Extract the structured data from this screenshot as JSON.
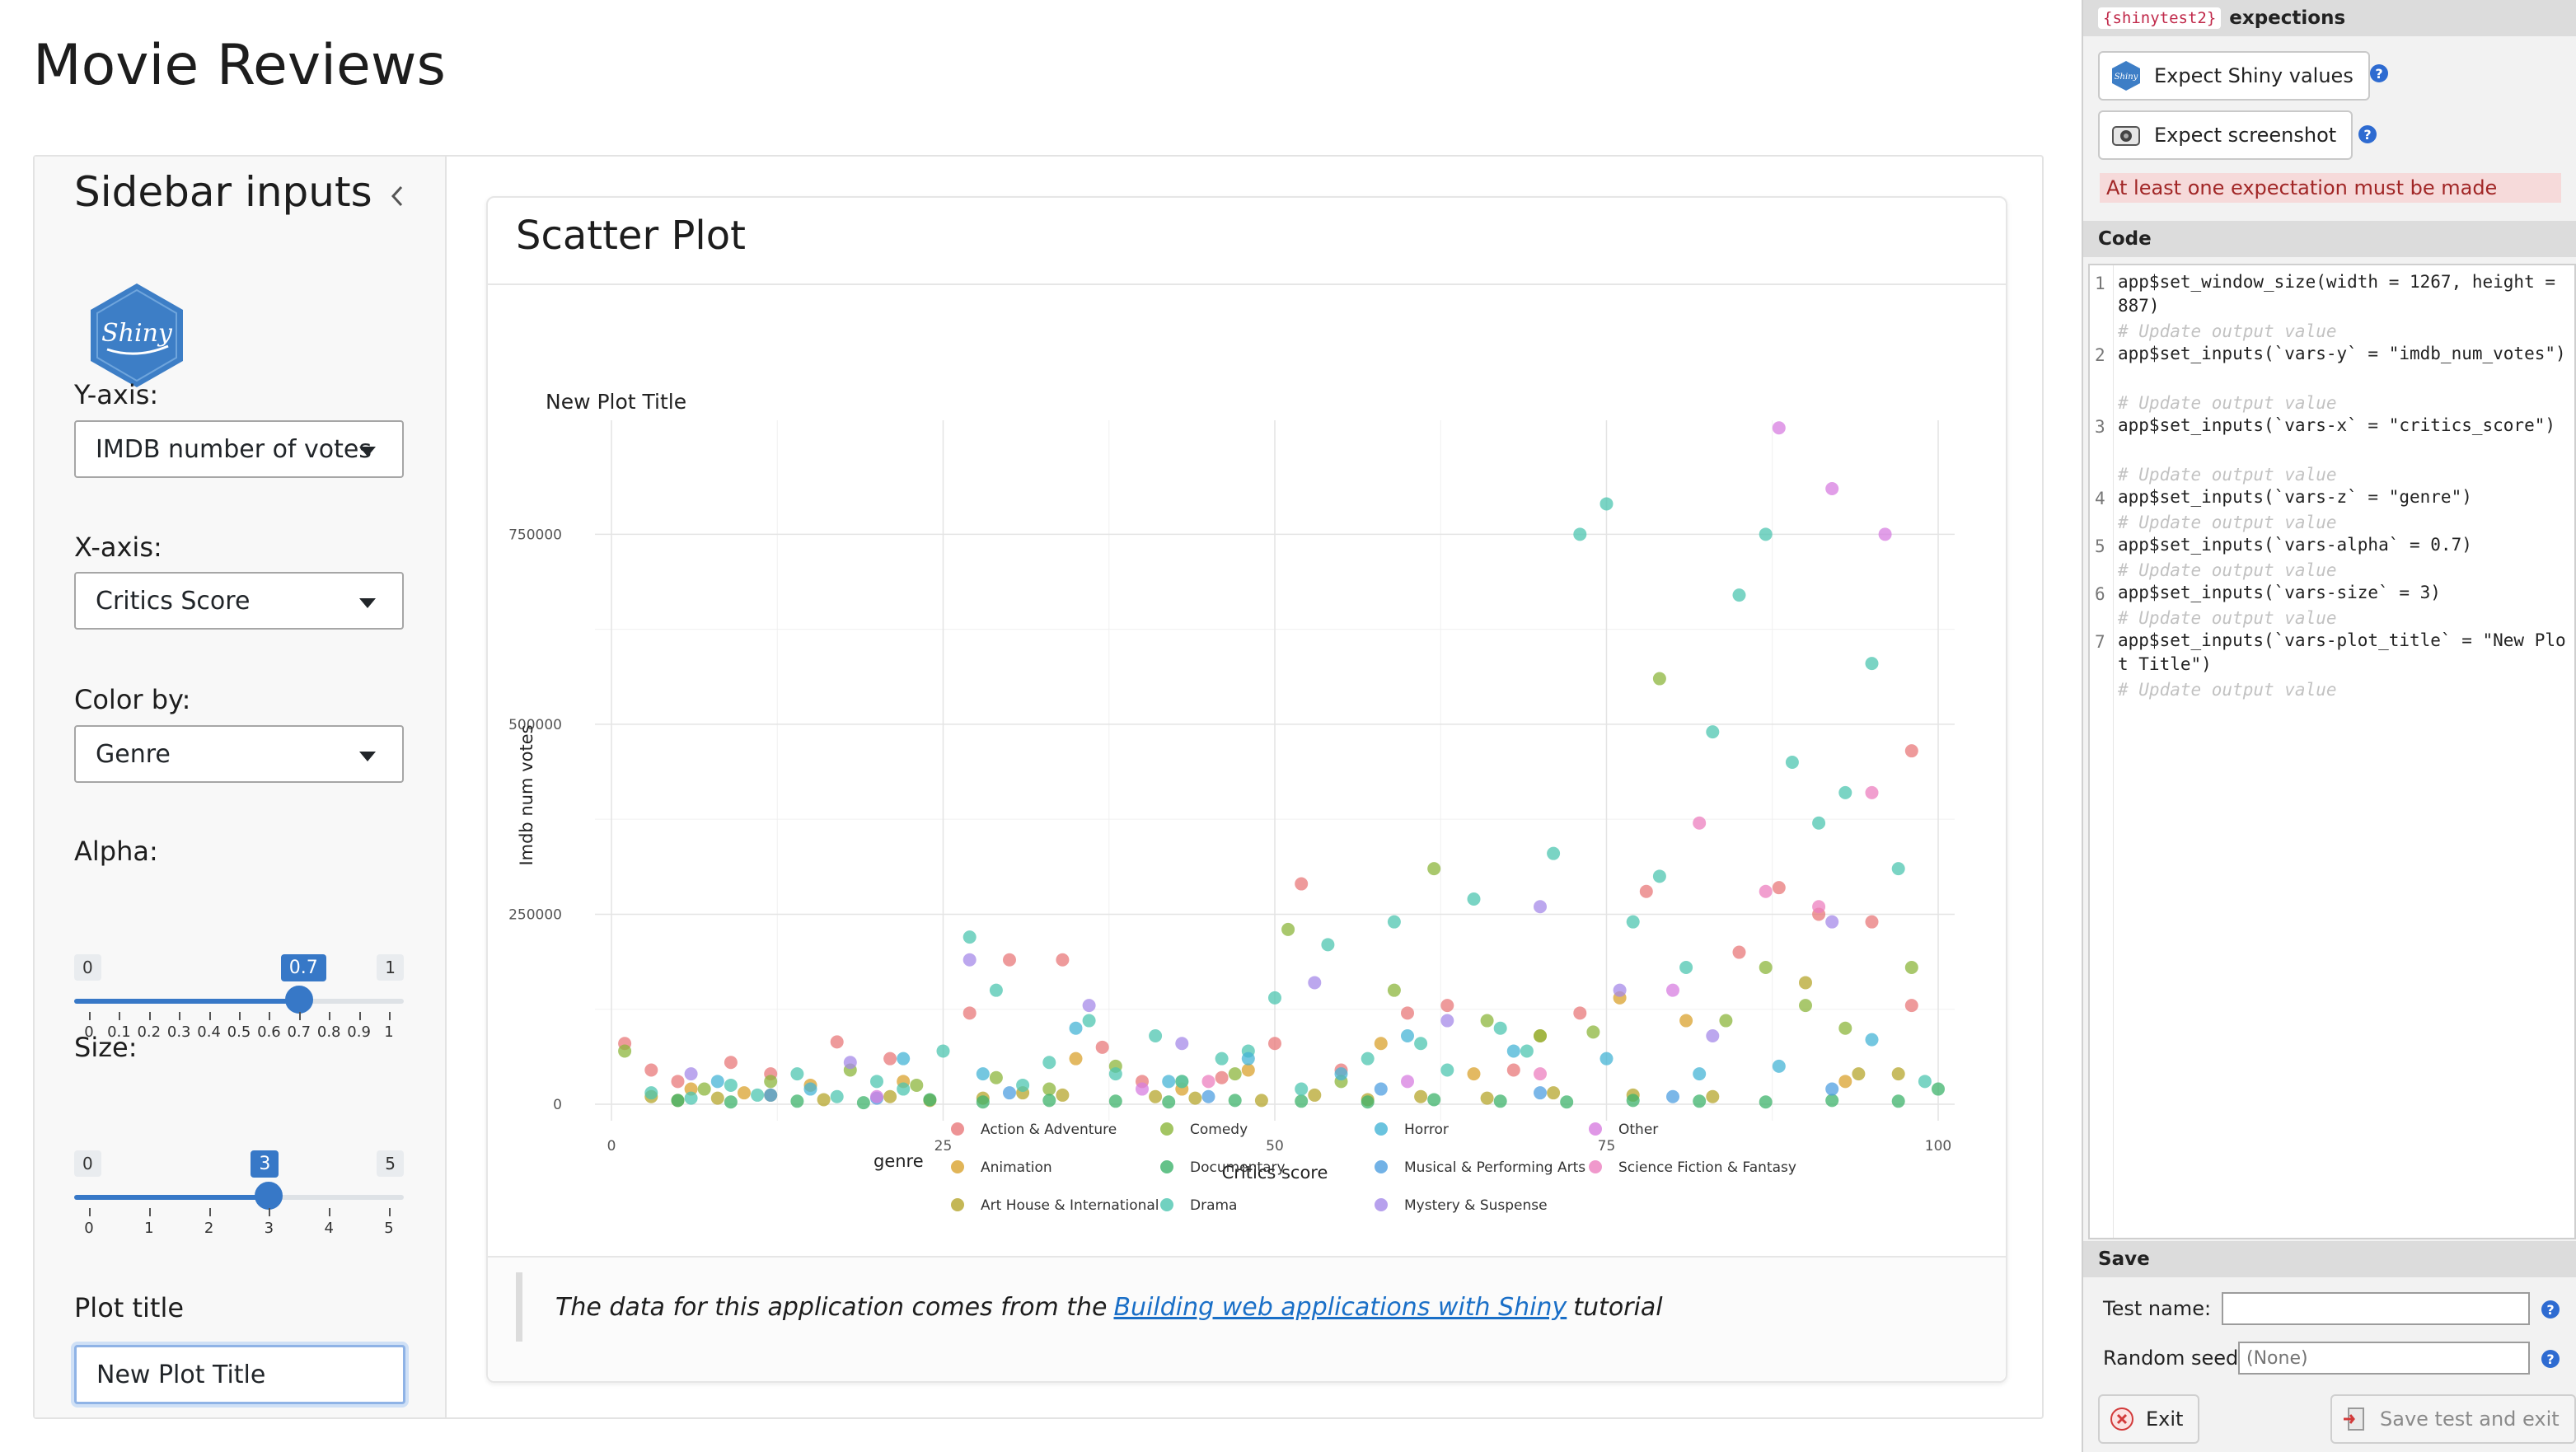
{
  "app": {
    "title": "Movie Reviews"
  },
  "sidebar": {
    "title": "Sidebar inputs",
    "y_axis": {
      "label": "Y-axis:",
      "value": "IMDB number of votes"
    },
    "x_axis": {
      "label": "X-axis:",
      "value": "Critics Score"
    },
    "color_by": {
      "label": "Color by:",
      "value": "Genre"
    },
    "alpha": {
      "label": "Alpha:",
      "min": "0",
      "max": "1",
      "value": 0.7,
      "value_label": "0.7",
      "ticks": [
        "0",
        "0.1",
        "0.2",
        "0.3",
        "0.4",
        "0.5",
        "0.6",
        "0.7",
        "0.8",
        "0.9",
        "1"
      ]
    },
    "size": {
      "label": "Size:",
      "min": "0",
      "max": "5",
      "value": 3,
      "value_label": "3",
      "ticks": [
        "0",
        "1",
        "2",
        "3",
        "4",
        "5"
      ]
    },
    "plot_title": {
      "label": "Plot title",
      "value": "New Plot Title"
    }
  },
  "main": {
    "card_title": "Scatter Plot",
    "footer": {
      "prefix": "The data for this application comes from the",
      "link": "Building web applications with Shiny",
      "suffix": "tutorial"
    }
  },
  "chart_data": {
    "type": "scatter",
    "title": "New Plot Title",
    "xlabel": "Critics score",
    "ylabel": "Imdb num votes",
    "xlim": [
      0,
      100
    ],
    "ylim": [
      0,
      900000
    ],
    "x_ticks": [
      0,
      25,
      50,
      75,
      100
    ],
    "y_ticks": [
      0,
      250000,
      500000,
      750000
    ],
    "y_tick_labels": [
      "0",
      "250000",
      "500000",
      "750000"
    ],
    "grid": true,
    "legend": {
      "title": "genre",
      "position": "bottom"
    },
    "series": [
      {
        "name": "Action & Adventure",
        "color": "#e8787a",
        "x": [
          1,
          3,
          5,
          9,
          12,
          17,
          21,
          27,
          30,
          34,
          37,
          40,
          46,
          50,
          52,
          55,
          60,
          63,
          68,
          73,
          78,
          85,
          88,
          91,
          95,
          98,
          98
        ],
        "y": [
          80000,
          45000,
          30000,
          55000,
          40000,
          82000,
          60000,
          120000,
          190000,
          190000,
          75000,
          30000,
          35000,
          80000,
          290000,
          45000,
          120000,
          130000,
          45000,
          120000,
          280000,
          200000,
          285000,
          250000,
          240000,
          130000,
          465000
        ]
      },
      {
        "name": "Animation",
        "color": "#d9a22e",
        "x": [
          6,
          10,
          15,
          22,
          35,
          43,
          48,
          58,
          65,
          70,
          76,
          81,
          93
        ],
        "y": [
          20000,
          15000,
          25000,
          30000,
          60000,
          20000,
          45000,
          80000,
          40000,
          90000,
          140000,
          110000,
          30000
        ]
      },
      {
        "name": "Art House & International",
        "color": "#b5a52c",
        "x": [
          3,
          5,
          8,
          12,
          16,
          21,
          24,
          28,
          31,
          34,
          41,
          44,
          49,
          53,
          57,
          61,
          66,
          71,
          77,
          83,
          90,
          94,
          97
        ],
        "y": [
          10000,
          5000,
          8000,
          12000,
          6000,
          10000,
          5000,
          8000,
          15000,
          12000,
          10000,
          8000,
          5000,
          12000,
          6000,
          10000,
          8000,
          15000,
          12000,
          10000,
          160000,
          40000,
          40000
        ]
      },
      {
        "name": "Comedy",
        "color": "#8cb63c",
        "x": [
          1,
          7,
          12,
          18,
          23,
          29,
          33,
          38,
          43,
          47,
          51,
          55,
          59,
          62,
          66,
          70,
          74,
          79,
          84,
          87,
          90,
          93,
          98
        ],
        "y": [
          70000,
          20000,
          30000,
          45000,
          25000,
          35000,
          20000,
          50000,
          30000,
          40000,
          230000,
          30000,
          150000,
          310000,
          110000,
          90000,
          95000,
          560000,
          110000,
          180000,
          130000,
          100000,
          180000
        ]
      },
      {
        "name": "Documentary",
        "color": "#3db36b",
        "x": [
          5,
          9,
          14,
          19,
          24,
          28,
          33,
          38,
          42,
          47,
          52,
          57,
          62,
          67,
          72,
          77,
          82,
          87,
          92,
          97,
          100
        ],
        "y": [
          5000,
          3000,
          4000,
          2000,
          6000,
          3000,
          5000,
          4000,
          3000,
          5000,
          4000,
          3000,
          6000,
          4000,
          3000,
          5000,
          4000,
          3000,
          5000,
          4000,
          20000
        ]
      },
      {
        "name": "Drama",
        "color": "#4ec6b0",
        "x": [
          3,
          6,
          9,
          11,
          14,
          17,
          20,
          22,
          25,
          27,
          29,
          31,
          33,
          36,
          38,
          41,
          43,
          46,
          48,
          50,
          52,
          54,
          57,
          59,
          61,
          63,
          65,
          67,
          69,
          71,
          73,
          75,
          77,
          79,
          81,
          83,
          85,
          87,
          89,
          91,
          93,
          95,
          97,
          99
        ],
        "y": [
          15000,
          8000,
          25000,
          12000,
          40000,
          10000,
          30000,
          20000,
          70000,
          220000,
          150000,
          25000,
          55000,
          110000,
          40000,
          90000,
          30000,
          60000,
          70000,
          140000,
          20000,
          210000,
          60000,
          240000,
          80000,
          45000,
          270000,
          100000,
          70000,
          330000,
          750000,
          790000,
          240000,
          300000,
          180000,
          490000,
          670000,
          750000,
          450000,
          370000,
          410000,
          580000,
          310000,
          30000
        ]
      },
      {
        "name": "Horror",
        "color": "#45b4d6",
        "x": [
          8,
          15,
          22,
          28,
          35,
          42,
          48,
          55,
          60,
          68,
          75,
          82,
          88,
          95
        ],
        "y": [
          30000,
          20000,
          60000,
          40000,
          100000,
          30000,
          60000,
          40000,
          90000,
          70000,
          60000,
          40000,
          50000,
          85000
        ]
      },
      {
        "name": "Musical & Performing Arts",
        "color": "#4f9fe0",
        "x": [
          12,
          20,
          30,
          45,
          58,
          70,
          80,
          92
        ],
        "y": [
          12000,
          8000,
          15000,
          10000,
          20000,
          15000,
          10000,
          20000
        ]
      },
      {
        "name": "Mystery & Suspense",
        "color": "#a58ae8",
        "x": [
          6,
          18,
          27,
          36,
          43,
          53,
          63,
          70,
          76,
          83,
          92
        ],
        "y": [
          40000,
          55000,
          190000,
          130000,
          80000,
          160000,
          110000,
          260000,
          150000,
          90000,
          240000
        ]
      },
      {
        "name": "Other",
        "color": "#d77de0",
        "x": [
          20,
          40,
          60,
          80,
          88,
          92,
          96
        ],
        "y": [
          10000,
          20000,
          30000,
          150000,
          890000,
          810000,
          750000
        ]
      },
      {
        "name": "Science Fiction & Fantasy",
        "color": "#ec7fbf",
        "x": [
          45,
          70,
          82,
          87,
          91,
          95
        ],
        "y": [
          30000,
          40000,
          370000,
          280000,
          260000,
          410000
        ]
      }
    ]
  },
  "panel": {
    "header_pill": "{shinytest2}",
    "header_text": "expections",
    "expect_values": "Expect Shiny values",
    "expect_screenshot": "Expect screenshot",
    "warning": "At least one expectation must be made",
    "code_header": "Code",
    "code_lines": [
      {
        "num": "1",
        "text": "app$set_window_size(width = 1267, height = 887)",
        "comment": ""
      },
      {
        "num": "2",
        "text": "app$set_inputs(`vars-y` = \"imdb_num_votes\")",
        "comment": "# Update output value"
      },
      {
        "num": "3",
        "text": "app$set_inputs(`vars-x` = \"critics_score\")",
        "comment": "# Update output value"
      },
      {
        "num": "4",
        "text": "app$set_inputs(`vars-z` = \"genre\")",
        "comment": "# Update output value"
      },
      {
        "num": "5",
        "text": "app$set_inputs(`vars-alpha` = 0.7)",
        "comment": "# Update output value"
      },
      {
        "num": "6",
        "text": "app$set_inputs(`vars-size` = 3)",
        "comment": "# Update output value"
      },
      {
        "num": "7",
        "text": "app$set_inputs(`vars-plot_title` = \"New Plot Title\")",
        "comment": "# Update output value"
      }
    ],
    "trailing_comment": "# Update output value",
    "save_header": "Save",
    "test_name_label": "Test name:",
    "test_name_value": "",
    "seed_label": "Random seed:",
    "seed_placeholder": "(None)",
    "exit_label": "Exit",
    "save_exit_label": "Save test and exit"
  }
}
